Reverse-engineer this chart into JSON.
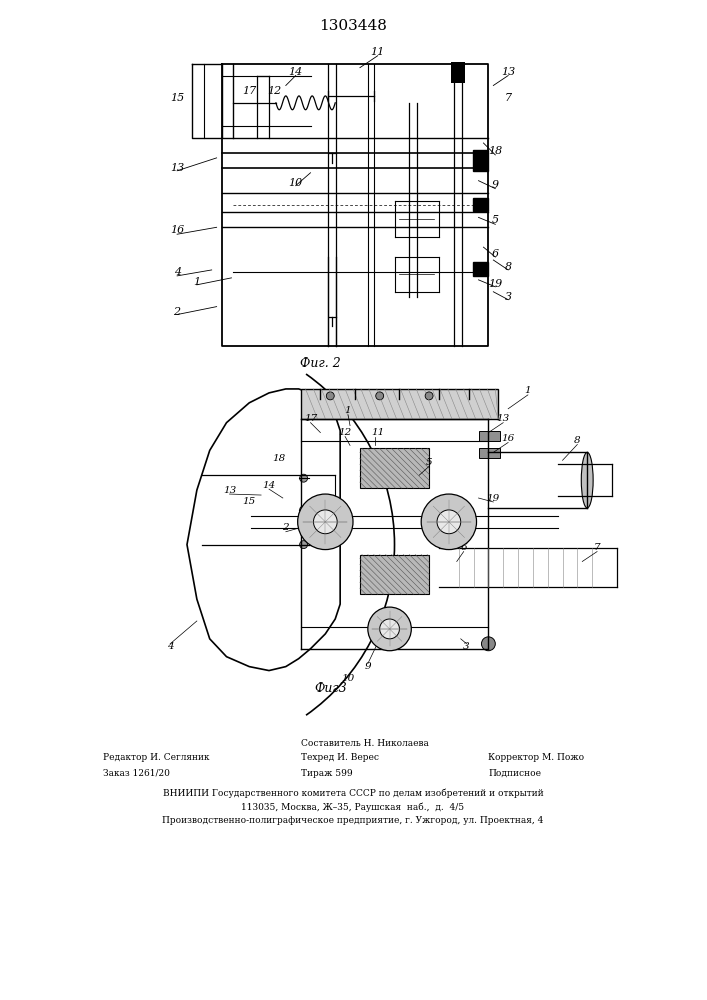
{
  "patent_number": "1303448",
  "fig2_caption": "Фиг. 2",
  "fig3_caption": "Фиг3",
  "background_color": "#ffffff",
  "line_color": "#000000",
  "footer_col1": [
    "Редактор И. Сегляник",
    "Заказ 1261/20"
  ],
  "footer_col2_top": "Составитель Н. Николаева",
  "footer_col2": [
    "Техред И. Верес",
    "Тираж 599"
  ],
  "footer_col3": [
    "Корректор М. Пожо",
    "Подписное"
  ],
  "footer_bottom": [
    "ВНИИПИ Государственного комитета СССР по делам изобретений и открытий",
    "113035, Москва, Ж–35, Раушская  наб.,  д.  4/5",
    "Производственно-полиграфическое предприятие, г. Ужгород, ул. Проектная, 4"
  ]
}
